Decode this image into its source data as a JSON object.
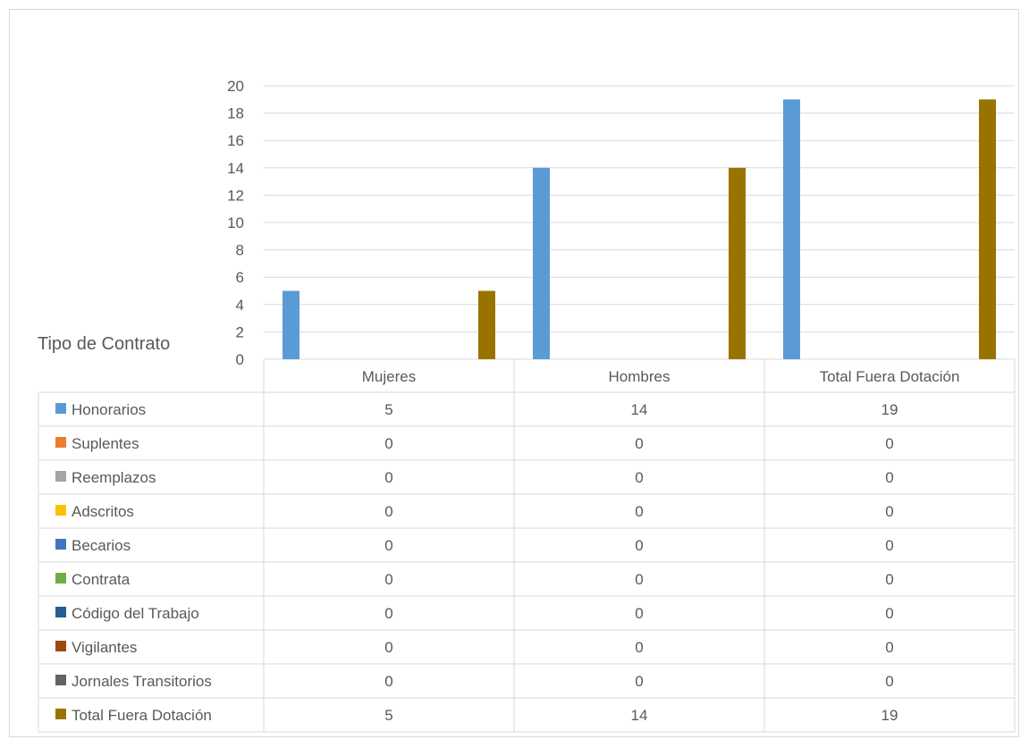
{
  "chart_data": {
    "type": "bar",
    "title": "Tipo de Contrato",
    "categories": [
      "Mujeres",
      "Hombres",
      "Total Fuera Dotación"
    ],
    "ylim": [
      0,
      20
    ],
    "yticks": [
      0,
      2,
      4,
      6,
      8,
      10,
      12,
      14,
      16,
      18,
      20
    ],
    "grid": true,
    "legend_position": "data-table",
    "series": [
      {
        "name": "Honorarios",
        "color": "#5b9bd5",
        "values": [
          5,
          14,
          19
        ]
      },
      {
        "name": "Suplentes",
        "color": "#ed7d31",
        "values": [
          0,
          0,
          0
        ]
      },
      {
        "name": "Reemplazos",
        "color": "#a5a5a5",
        "values": [
          0,
          0,
          0
        ]
      },
      {
        "name": "Adscritos",
        "color": "#ffc000",
        "values": [
          0,
          0,
          0
        ]
      },
      {
        "name": "Becarios",
        "color": "#4472c4",
        "values": [
          0,
          0,
          0
        ]
      },
      {
        "name": "Contrata",
        "color": "#70ad47",
        "values": [
          0,
          0,
          0
        ]
      },
      {
        "name": "Código del Trabajo",
        "color": "#255e91",
        "values": [
          0,
          0,
          0
        ]
      },
      {
        "name": "Vigilantes",
        "color": "#9e480e",
        "values": [
          0,
          0,
          0
        ]
      },
      {
        "name": "Jornales Transitorios",
        "color": "#636363",
        "values": [
          0,
          0,
          0
        ]
      },
      {
        "name": "Total Fuera Dotación",
        "color": "#997300",
        "values": [
          5,
          14,
          19
        ]
      }
    ]
  }
}
